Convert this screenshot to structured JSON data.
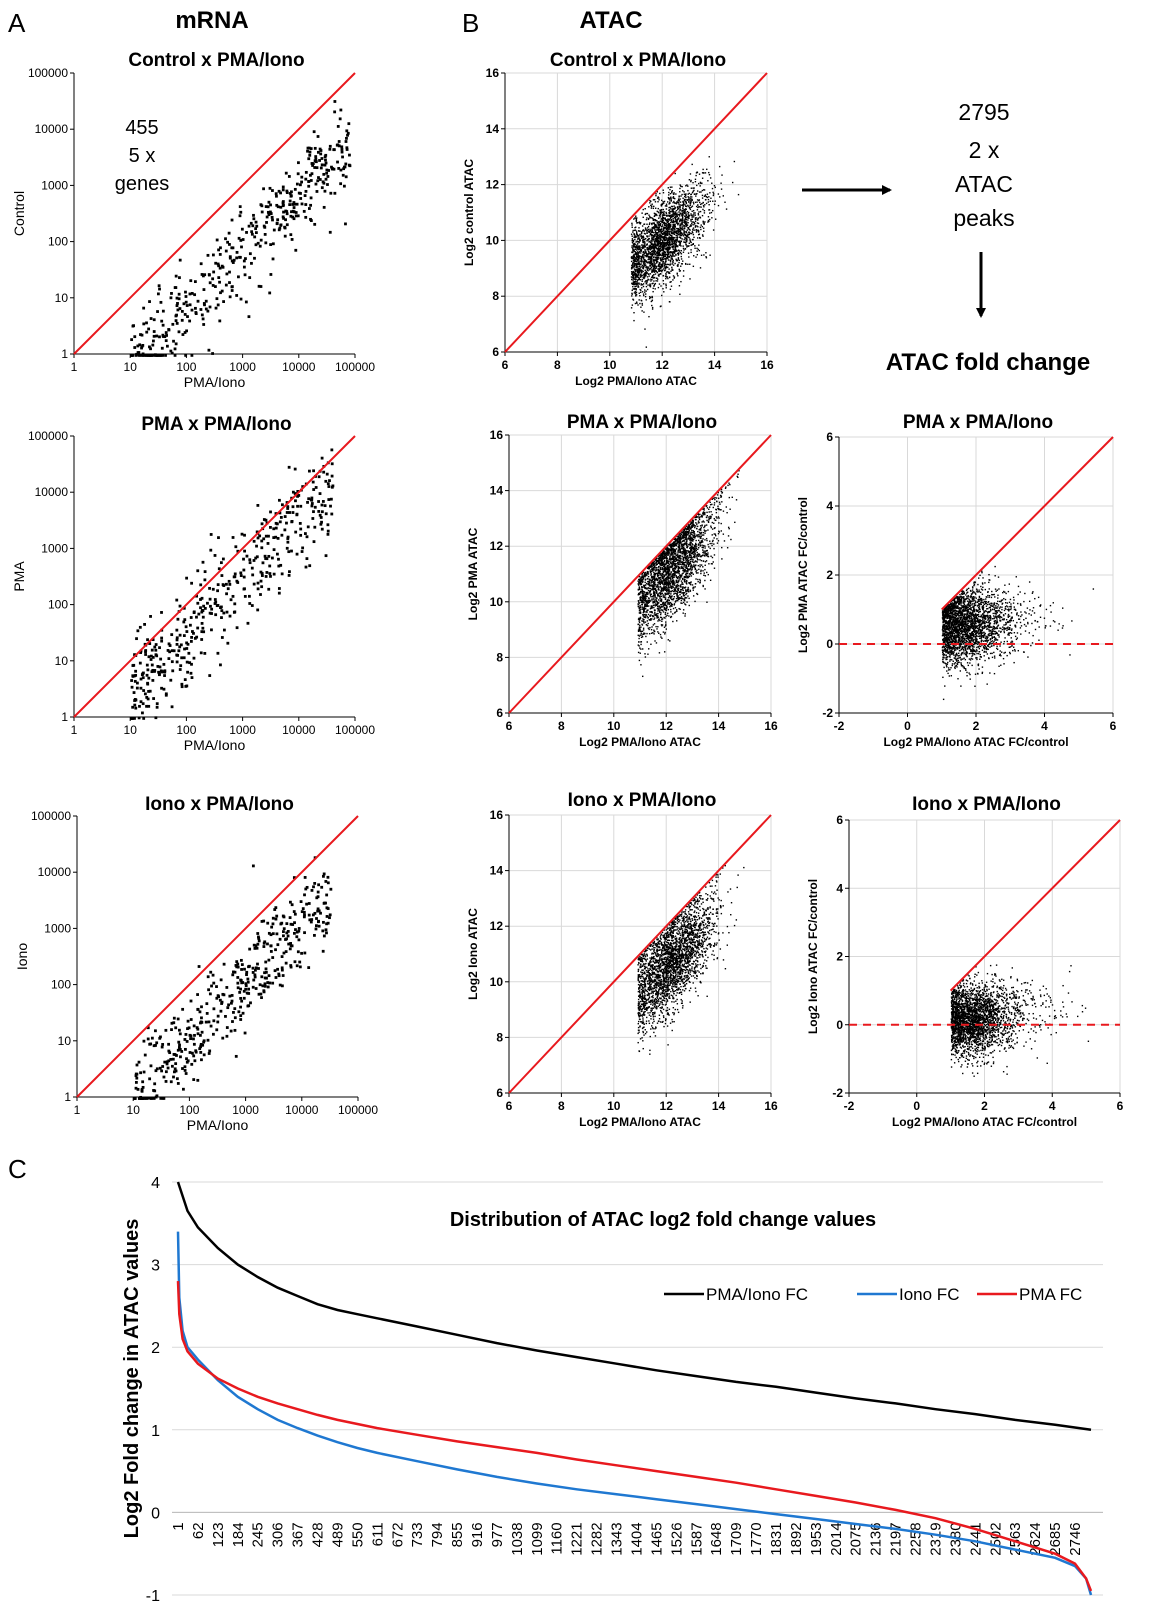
{
  "colors": {
    "diag": "#e8191e",
    "dot": "#000000",
    "pma_iono_fc": "#000000",
    "iono_fc": "#1f78d1",
    "pma_fc": "#e8191e",
    "grid": "#d9d9d9"
  },
  "panel_letters": {
    "a": "A",
    "b": "B",
    "c": "C"
  },
  "section_titles": {
    "mrna": "mRNA",
    "atac": "ATAC"
  },
  "flow": {
    "line1": "2795",
    "line2": "2 x",
    "line3": "ATAC",
    "line4": "peaks",
    "fold_change_title": "ATAC fold change"
  },
  "annotation": {
    "line1": "455",
    "line2": "5 x",
    "line3": "genes"
  },
  "chart_data": [
    {
      "id": "mrna-control",
      "type": "scatter",
      "title": "Control  x PMA/Iono",
      "xlabel": "PMA/Iono",
      "ylabel": "Control",
      "log": true,
      "xlim": [
        1,
        100000
      ],
      "ylim": [
        1,
        100000
      ],
      "xticks": [
        "1",
        "10",
        "100",
        "1000",
        "10000",
        "100000"
      ],
      "yticks": [
        "1",
        "10",
        "100",
        "1000",
        "10000",
        "100000"
      ],
      "reference_line": "y=x",
      "n_points_approx": 455
    },
    {
      "id": "mrna-pma",
      "type": "scatter",
      "title": "PMA  x PMA/Iono",
      "xlabel": "PMA/Iono",
      "ylabel": "PMA",
      "log": true,
      "xlim": [
        1,
        100000
      ],
      "ylim": [
        1,
        100000
      ],
      "xticks": [
        "1",
        "10",
        "100",
        "1000",
        "10000",
        "100000"
      ],
      "yticks": [
        "1",
        "10",
        "100",
        "1000",
        "10000",
        "100000"
      ],
      "reference_line": "y=x",
      "n_points_approx": 455
    },
    {
      "id": "mrna-iono",
      "type": "scatter",
      "title": "Iono  x PMA/Iono",
      "xlabel": "PMA/Iono",
      "ylabel": "Iono",
      "log": true,
      "xlim": [
        1,
        100000
      ],
      "ylim": [
        1,
        100000
      ],
      "xticks": [
        "1",
        "10",
        "100",
        "1000",
        "10000",
        "100000"
      ],
      "yticks": [
        "1",
        "10",
        "100",
        "1000",
        "10000",
        "100000"
      ],
      "reference_line": "y=x",
      "n_points_approx": 455
    },
    {
      "id": "atac-control",
      "type": "scatter",
      "title": "Control  x PMA/Iono",
      "xlabel": "Log2 PMA/Iono ATAC",
      "ylabel": "Log2 control ATAC",
      "xlim": [
        6,
        16
      ],
      "ylim": [
        6,
        16
      ],
      "xticks": [
        "6",
        "8",
        "10",
        "12",
        "14",
        "16"
      ],
      "yticks": [
        "6",
        "8",
        "10",
        "12",
        "14",
        "16"
      ],
      "grid": true,
      "reference_line": "y=x",
      "n_points_approx": 2795
    },
    {
      "id": "atac-pma",
      "type": "scatter",
      "title": "PMA  x PMA/Iono",
      "xlabel": "Log2 PMA/Iono ATAC",
      "ylabel": "Log2 PMA ATAC",
      "xlim": [
        6,
        16
      ],
      "ylim": [
        6,
        16
      ],
      "xticks": [
        "6",
        "8",
        "10",
        "12",
        "14",
        "16"
      ],
      "yticks": [
        "6",
        "8",
        "10",
        "12",
        "14",
        "16"
      ],
      "grid": true,
      "reference_line": "y=x",
      "n_points_approx": 2795
    },
    {
      "id": "atac-iono",
      "type": "scatter",
      "title": "Iono  x PMA/Iono",
      "xlabel": "Log2 PMA/Iono ATAC",
      "ylabel": "Log2 Iono ATAC",
      "xlim": [
        6,
        16
      ],
      "ylim": [
        6,
        16
      ],
      "xticks": [
        "6",
        "8",
        "10",
        "12",
        "14",
        "16"
      ],
      "yticks": [
        "6",
        "8",
        "10",
        "12",
        "14",
        "16"
      ],
      "grid": true,
      "reference_line": "y=x",
      "n_points_approx": 2795
    },
    {
      "id": "fc-pma",
      "type": "scatter",
      "title": "PMA  x PMA/Iono",
      "xlabel": "Log2 PMA/Iono ATAC  FC/control",
      "ylabel": "Log2 PMA ATAC  FC/control",
      "xlim": [
        -2,
        6
      ],
      "ylim": [
        -2,
        6
      ],
      "xticks": [
        "-2",
        "0",
        "2",
        "4",
        "6"
      ],
      "yticks": [
        "-2",
        "0",
        "2",
        "4",
        "6"
      ],
      "grid": true,
      "reference_line": "y=x",
      "zero_line": "dashed",
      "n_points_approx": 2795
    },
    {
      "id": "fc-iono",
      "type": "scatter",
      "title": "Iono  x PMA/Iono",
      "xlabel": "Log2 PMA/Iono ATAC  FC/control",
      "ylabel": "Log2 Iono ATAC  FC/control",
      "xlim": [
        -2,
        6
      ],
      "ylim": [
        -2,
        6
      ],
      "xticks": [
        "-2",
        "0",
        "2",
        "4",
        "6"
      ],
      "yticks": [
        "-2",
        "0",
        "2",
        "4",
        "6"
      ],
      "grid": true,
      "reference_line": "y=x",
      "zero_line": "dashed",
      "n_points_approx": 2795
    },
    {
      "id": "distribution",
      "type": "line",
      "title": "Distribution of ATAC log2 fold change values",
      "xlabel": "",
      "ylabel": "Log2 Fold change in ATAC values",
      "ylim": [
        -1,
        4
      ],
      "yticks": [
        "-1",
        "0",
        "1",
        "2",
        "3",
        "4"
      ],
      "xlim": [
        1,
        2795
      ],
      "xticks": [
        "1",
        "62",
        "123",
        "184",
        "245",
        "306",
        "367",
        "428",
        "489",
        "550",
        "611",
        "672",
        "733",
        "794",
        "855",
        "916",
        "977",
        "1038",
        "1099",
        "1160",
        "1221",
        "1282",
        "1343",
        "1404",
        "1465",
        "1526",
        "1587",
        "1648",
        "1709",
        "1770",
        "1831",
        "1892",
        "1953",
        "2014",
        "2075",
        "2136",
        "2197",
        "2258",
        "2319",
        "2380",
        "2441",
        "2502",
        "2563",
        "2624",
        "2685",
        "2746"
      ],
      "legend_position": "top-right",
      "grid": true,
      "series": [
        {
          "name": "PMA/Iono FC",
          "color": "#000000",
          "x": [
            1,
            30,
            62,
            123,
            184,
            245,
            306,
            367,
            428,
            489,
            550,
            611,
            733,
            855,
            977,
            1099,
            1221,
            1343,
            1465,
            1587,
            1709,
            1831,
            1953,
            2075,
            2197,
            2319,
            2441,
            2563,
            2685,
            2795
          ],
          "y": [
            4.0,
            3.65,
            3.45,
            3.2,
            3.0,
            2.85,
            2.72,
            2.62,
            2.52,
            2.45,
            2.4,
            2.35,
            2.25,
            2.15,
            2.05,
            1.96,
            1.88,
            1.8,
            1.72,
            1.65,
            1.58,
            1.52,
            1.45,
            1.38,
            1.32,
            1.25,
            1.19,
            1.12,
            1.06,
            1.0
          ]
        },
        {
          "name": "Iono FC",
          "color": "#1f78d1",
          "x": [
            1,
            5,
            15,
            30,
            62,
            123,
            184,
            245,
            306,
            367,
            428,
            489,
            550,
            611,
            733,
            855,
            977,
            1099,
            1221,
            1343,
            1465,
            1587,
            1709,
            1831,
            1953,
            2075,
            2197,
            2319,
            2441,
            2563,
            2685,
            2746,
            2780,
            2795
          ],
          "y": [
            3.4,
            2.6,
            2.2,
            2.0,
            1.85,
            1.6,
            1.4,
            1.25,
            1.12,
            1.02,
            0.93,
            0.85,
            0.78,
            0.72,
            0.62,
            0.52,
            0.43,
            0.35,
            0.28,
            0.22,
            0.16,
            0.1,
            0.04,
            -0.02,
            -0.08,
            -0.14,
            -0.2,
            -0.27,
            -0.35,
            -0.45,
            -0.55,
            -0.65,
            -0.8,
            -1.0
          ]
        },
        {
          "name": "PMA FC",
          "color": "#e8191e",
          "x": [
            1,
            5,
            15,
            30,
            62,
            123,
            184,
            245,
            306,
            367,
            428,
            489,
            550,
            611,
            733,
            855,
            977,
            1099,
            1221,
            1343,
            1465,
            1587,
            1709,
            1831,
            1953,
            2075,
            2197,
            2319,
            2441,
            2563,
            2685,
            2746,
            2780,
            2795
          ],
          "y": [
            2.8,
            2.4,
            2.1,
            1.95,
            1.8,
            1.62,
            1.5,
            1.4,
            1.32,
            1.25,
            1.18,
            1.12,
            1.07,
            1.02,
            0.94,
            0.86,
            0.79,
            0.72,
            0.64,
            0.57,
            0.5,
            0.43,
            0.36,
            0.28,
            0.2,
            0.12,
            0.03,
            -0.07,
            -0.2,
            -0.35,
            -0.5,
            -0.62,
            -0.8,
            -0.95
          ]
        }
      ]
    }
  ]
}
